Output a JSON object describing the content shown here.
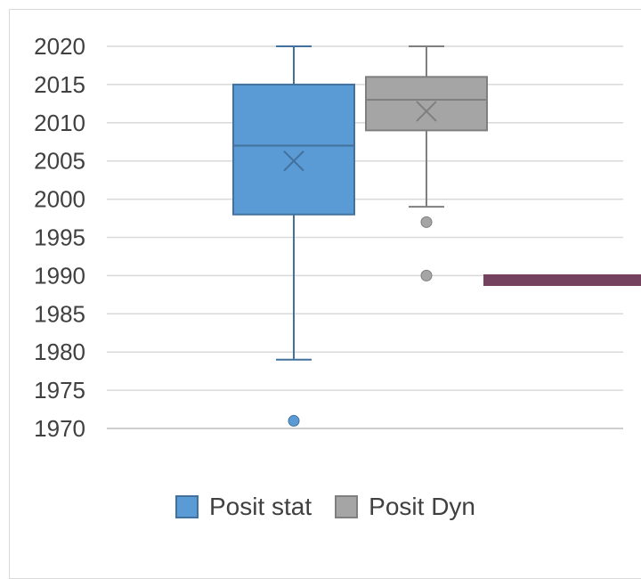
{
  "chart_data": {
    "type": "box",
    "title": "",
    "xlabel": "",
    "ylabel": "",
    "ylim": [
      1970,
      2020
    ],
    "yticks": [
      2020,
      2015,
      2010,
      2005,
      2000,
      1995,
      1990,
      1985,
      1980,
      1975,
      1970
    ],
    "grid": true,
    "legend_position": "bottom",
    "series": [
      {
        "name": "Posit stat",
        "fill": "#5b9bd5",
        "stroke": "#41719c",
        "min": 1979,
        "q1": 1998,
        "median": 2007,
        "q3": 2015,
        "max": 2020,
        "mean": 2005,
        "outliers": [
          1971
        ]
      },
      {
        "name": "Posit Dyn",
        "fill": "#a5a5a5",
        "stroke": "#7f7f7f",
        "min": 1999,
        "q1": 2009,
        "median": 2013,
        "q3": 2016,
        "max": 2020,
        "mean": 2011.5,
        "outliers": [
          1997,
          1990
        ]
      }
    ]
  },
  "annotation": {
    "color": "#74415f"
  }
}
